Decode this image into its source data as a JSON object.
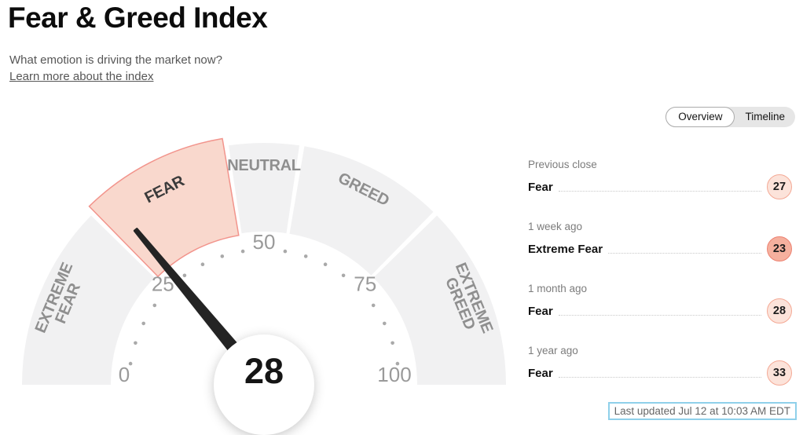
{
  "page": {
    "title": "Fear & Greed Index",
    "subtitle": "What emotion is driving the market now?",
    "learn_more": "Learn more about the index"
  },
  "tabs": {
    "items": [
      {
        "label": "Overview",
        "selected": true
      },
      {
        "label": "Timeline",
        "selected": false
      }
    ]
  },
  "chart_data": {
    "type": "gauge",
    "title": "Fear & Greed Index gauge",
    "value": 28,
    "value_label": "28",
    "min": 0,
    "max": 100,
    "axis_tick_labels": [
      0,
      25,
      50,
      75,
      100
    ],
    "minor_tick_step": 5,
    "segments": [
      {
        "label": "EXTREME FEAR",
        "from": 0,
        "to": 25,
        "active": false
      },
      {
        "label": "FEAR",
        "from": 25,
        "to": 45,
        "active": true
      },
      {
        "label": "NEUTRAL",
        "from": 45,
        "to": 55,
        "active": false
      },
      {
        "label": "GREED",
        "from": 55,
        "to": 75,
        "active": false
      },
      {
        "label": "EXTREME GREED",
        "from": 75,
        "to": 100,
        "active": false
      }
    ],
    "colors": {
      "segment": "#f1f1f2",
      "active_fill": "#f9d8cd",
      "active_stroke": "#f2948c",
      "segment_label": "#8f8f8f",
      "active_segment_label": "#3b3b3b",
      "tick_dot": "#a9a9a9",
      "tick_label": "#9a9a9a",
      "needle": "#242424",
      "value_text": "#151515"
    }
  },
  "history": {
    "items": [
      {
        "period": "Previous close",
        "rating": "Fear",
        "value": "27",
        "variant": "mild"
      },
      {
        "period": "1 week ago",
        "rating": "Extreme Fear",
        "value": "23",
        "variant": "extreme"
      },
      {
        "period": "1 month ago",
        "rating": "Fear",
        "value": "28",
        "variant": "mild"
      },
      {
        "period": "1 year ago",
        "rating": "Fear",
        "value": "33",
        "variant": "mild"
      }
    ]
  },
  "footer": {
    "last_updated": "Last updated Jul 12 at 10:03 AM EDT"
  }
}
